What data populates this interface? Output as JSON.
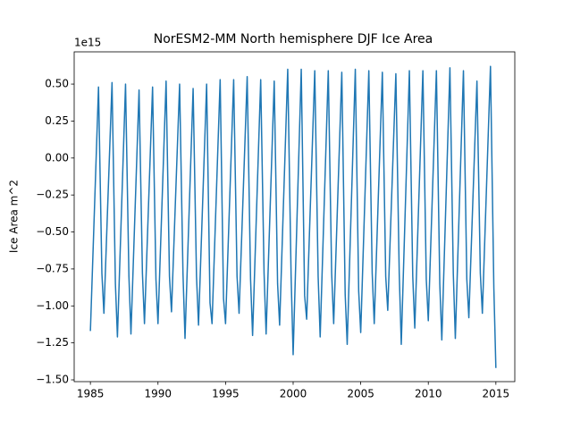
{
  "chart_data": {
    "type": "line",
    "title": "NorESM2-MM North hemisphere DJF Ice Area",
    "y_label": "Ice Area m^2",
    "y_offset_label": "1e15",
    "x": [
      1985,
      1985.6,
      1985.85,
      1986,
      1986.6,
      1986.85,
      1987,
      1987.6,
      1987.85,
      1988,
      1988.6,
      1988.85,
      1989,
      1989.6,
      1989.85,
      1990,
      1990.6,
      1990.85,
      1991,
      1991.6,
      1991.85,
      1992,
      1992.6,
      1992.85,
      1993,
      1993.6,
      1993.85,
      1994,
      1994.6,
      1994.85,
      1995,
      1995.6,
      1995.85,
      1996,
      1996.6,
      1996.85,
      1997,
      1997.6,
      1997.85,
      1998,
      1998.6,
      1998.85,
      1999,
      1999.6,
      1999.85,
      2000,
      2000.6,
      2000.85,
      2001,
      2001.6,
      2001.85,
      2002,
      2002.6,
      2002.85,
      2003,
      2003.6,
      2003.85,
      2004,
      2004.6,
      2004.85,
      2005,
      2005.6,
      2005.85,
      2006,
      2006.6,
      2006.85,
      2007,
      2007.6,
      2007.85,
      2008,
      2008.6,
      2008.85,
      2009,
      2009.6,
      2009.85,
      2010,
      2010.6,
      2010.85,
      2011,
      2011.6,
      2011.85,
      2012,
      2012.6,
      2012.85,
      2013,
      2013.6,
      2013.85,
      2014,
      2014.6,
      2014.85,
      2015
    ],
    "series": [
      {
        "color": "#1f77b4",
        "values": [
          -1.17,
          0.48,
          -0.78,
          -1.05,
          0.51,
          -0.85,
          -1.21,
          0.5,
          -0.8,
          -1.19,
          0.46,
          -0.78,
          -1.12,
          0.48,
          -0.82,
          -1.12,
          0.52,
          -0.8,
          -1.04,
          0.5,
          -0.78,
          -1.22,
          0.47,
          -0.8,
          -1.13,
          0.5,
          -0.98,
          -1.12,
          0.53,
          -0.95,
          -1.12,
          0.53,
          -0.8,
          -1.05,
          0.55,
          -0.82,
          -1.2,
          0.53,
          -0.78,
          -1.19,
          0.52,
          -0.85,
          -1.13,
          0.6,
          -0.8,
          -1.33,
          0.6,
          -0.93,
          -1.09,
          0.59,
          -0.8,
          -1.21,
          0.59,
          -0.78,
          -1.12,
          0.58,
          -0.92,
          -1.26,
          0.6,
          -0.9,
          -1.18,
          0.59,
          -0.78,
          -1.12,
          0.58,
          -0.8,
          -1.03,
          0.57,
          -0.78,
          -1.26,
          0.59,
          -0.8,
          -1.15,
          0.59,
          -0.82,
          -1.1,
          0.59,
          -0.85,
          -1.23,
          0.61,
          -0.78,
          -1.22,
          0.59,
          -0.82,
          -1.08,
          0.52,
          -0.78,
          -1.05,
          0.62,
          -0.88,
          -1.42
        ]
      }
    ],
    "xlim": [
      1983.8,
      2016.4
    ],
    "ylim": [
      -1.512,
      0.718
    ],
    "xticks": [
      1985,
      1990,
      1995,
      2000,
      2005,
      2010,
      2015
    ],
    "yticks": [
      {
        "value": 0.5,
        "label": "0.50"
      },
      {
        "value": 0.25,
        "label": "0.25"
      },
      {
        "value": 0,
        "label": "0.00"
      },
      {
        "value": -0.25,
        "label": "−0.25"
      },
      {
        "value": -0.5,
        "label": "−0.50"
      },
      {
        "value": -0.75,
        "label": "−0.75"
      },
      {
        "value": -1,
        "label": "−1.00"
      },
      {
        "value": -1.25,
        "label": "−1.25"
      },
      {
        "value": -1.5,
        "label": "−1.50"
      }
    ],
    "grid": false
  }
}
